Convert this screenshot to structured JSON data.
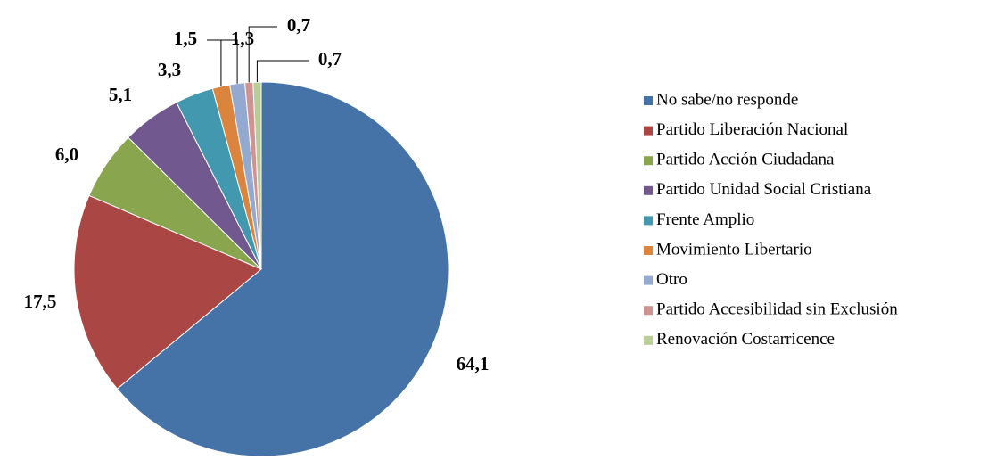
{
  "chart_data": {
    "type": "pie",
    "categories": [
      "No sabe/no responde",
      "Partido Liberación Nacional",
      "Partido Acción Ciudadana",
      "Partido Unidad Social Cristiana",
      "Frente Amplio",
      "Movimiento Libertario",
      "Otro",
      "Partido Accesibilidad sin Exclusión",
      "Renovación Costarricence"
    ],
    "values": [
      64.1,
      17.5,
      6.0,
      5.1,
      3.3,
      1.5,
      1.3,
      0.7,
      0.7
    ],
    "value_labels": [
      "64,1",
      "17,5",
      "6,0",
      "5,1",
      "3,3",
      "1,5",
      "1,3",
      "0,7",
      "0,7"
    ],
    "colors": [
      "#4572a7",
      "#aa4643",
      "#89a54e",
      "#71588f",
      "#4198af",
      "#db843d",
      "#93a9cf",
      "#d19392",
      "#b9cd96"
    ],
    "legend": "right"
  }
}
